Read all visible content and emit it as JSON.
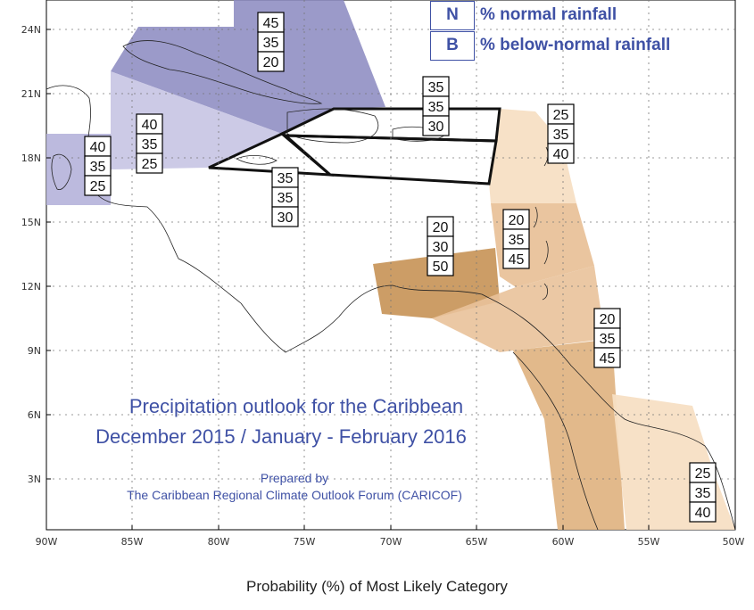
{
  "title_line1": "Precipitation outlook for the Caribbean",
  "title_line2": "December 2015 / January - February 2016",
  "prepared_by": "Prepared by",
  "prepared_org": "The Caribbean Regional Climate Outlook Forum (CARICOF)",
  "bottom_title": "Probability (%) of Most Likely Category",
  "legend": [
    {
      "code": "N",
      "label": "% normal rainfall"
    },
    {
      "code": "B",
      "label": "% below-normal rainfall"
    }
  ],
  "lat_labels": [
    "24N",
    "21N",
    "18N",
    "15N",
    "12N",
    "9N",
    "6N",
    "3N"
  ],
  "lon_labels": [
    "90W",
    "85W",
    "80W",
    "75W",
    "70W",
    "65W",
    "60W",
    "55W",
    "50W"
  ],
  "probability_boxes": [
    {
      "id": "cuba-bahamas",
      "values": [
        "45",
        "35",
        "20"
      ]
    },
    {
      "id": "western-caribbean",
      "values": [
        "40",
        "35",
        "25"
      ]
    },
    {
      "id": "belize",
      "values": [
        "40",
        "35",
        "25"
      ]
    },
    {
      "id": "hispaniola-pr",
      "values": [
        "35",
        "35",
        "30"
      ]
    },
    {
      "id": "jamaica",
      "values": [
        "35",
        "35",
        "30"
      ]
    },
    {
      "id": "leeward-islands",
      "values": [
        "25",
        "35",
        "40"
      ]
    },
    {
      "id": "windward-islands",
      "values": [
        "20",
        "35",
        "45"
      ]
    },
    {
      "id": "abc-islands",
      "values": [
        "20",
        "30",
        "50"
      ]
    },
    {
      "id": "guyana",
      "values": [
        "20",
        "35",
        "45"
      ]
    },
    {
      "id": "suriname-french-guiana",
      "values": [
        "25",
        "35",
        "40"
      ]
    }
  ],
  "colors": {
    "wet_dark": "#8a88c0",
    "wet_light": "#c6c4e3",
    "dry_strong": "#c9985e",
    "dry_medium": "#e9c29a",
    "dry_light": "#f7dfc4",
    "text_blue": "#3f51a5"
  }
}
